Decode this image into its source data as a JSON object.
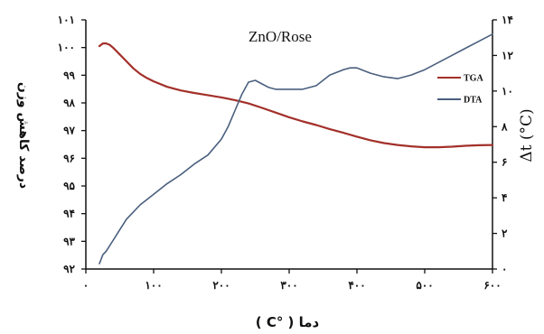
{
  "chart_data": {
    "type": "line",
    "title": "ZnO/Rose",
    "xlabel": "دما ( °C )",
    "ylabel_left": "درصد کاهش وزن",
    "ylabel_right": "Δt (°C)",
    "xlim": [
      0,
      600
    ],
    "ylim_left": [
      92,
      101
    ],
    "ylim_right": [
      0,
      14
    ],
    "x_ticks": [
      "۰",
      "۱۰۰",
      "۲۰۰",
      "۳۰۰",
      "۴۰۰",
      "۵۰۰",
      "۶۰۰"
    ],
    "y_left_ticks": [
      "۹۲",
      "۹۳",
      "۹۴",
      "۹۵",
      "۹۶",
      "۹۷",
      "۹۸",
      "۹۹",
      "۱۰۰",
      "۱۰۱"
    ],
    "y_right_ticks": [
      "۰",
      "۲",
      "۴",
      "۶",
      "۸",
      "۱۰",
      "۱۲",
      "۱۴"
    ],
    "legend_position": "right",
    "series": [
      {
        "name": "TGA",
        "axis": "left",
        "color": "#a3302a",
        "x": [
          20,
          25,
          30,
          35,
          40,
          50,
          60,
          70,
          80,
          90,
          100,
          120,
          140,
          160,
          180,
          200,
          220,
          240,
          260,
          280,
          300,
          320,
          340,
          360,
          380,
          400,
          420,
          440,
          460,
          480,
          500,
          520,
          540,
          560,
          580,
          600
        ],
        "y": [
          100.05,
          100.15,
          100.15,
          100.1,
          100.0,
          99.75,
          99.5,
          99.25,
          99.05,
          98.9,
          98.78,
          98.58,
          98.45,
          98.36,
          98.28,
          98.2,
          98.1,
          97.98,
          97.82,
          97.65,
          97.48,
          97.33,
          97.2,
          97.05,
          96.92,
          96.78,
          96.65,
          96.55,
          96.48,
          96.43,
          96.4,
          96.4,
          96.42,
          96.45,
          96.47,
          96.48
        ]
      },
      {
        "name": "DTA",
        "axis": "right",
        "color": "#4a5f7e",
        "x": [
          20,
          25,
          30,
          40,
          50,
          60,
          70,
          80,
          100,
          120,
          140,
          160,
          180,
          200,
          210,
          220,
          230,
          240,
          250,
          260,
          270,
          280,
          300,
          320,
          340,
          350,
          360,
          380,
          390,
          400,
          420,
          440,
          460,
          480,
          500,
          520,
          540,
          560,
          580,
          600
        ],
        "y": [
          0.3,
          0.8,
          1.0,
          1.6,
          2.2,
          2.8,
          3.2,
          3.6,
          4.2,
          4.8,
          5.3,
          5.9,
          6.4,
          7.3,
          8.0,
          8.9,
          9.8,
          10.5,
          10.6,
          10.4,
          10.2,
          10.1,
          10.1,
          10.1,
          10.3,
          10.6,
          10.9,
          11.2,
          11.3,
          11.3,
          11.0,
          10.8,
          10.7,
          10.9,
          11.2,
          11.6,
          12.0,
          12.4,
          12.8,
          13.2
        ]
      }
    ]
  }
}
